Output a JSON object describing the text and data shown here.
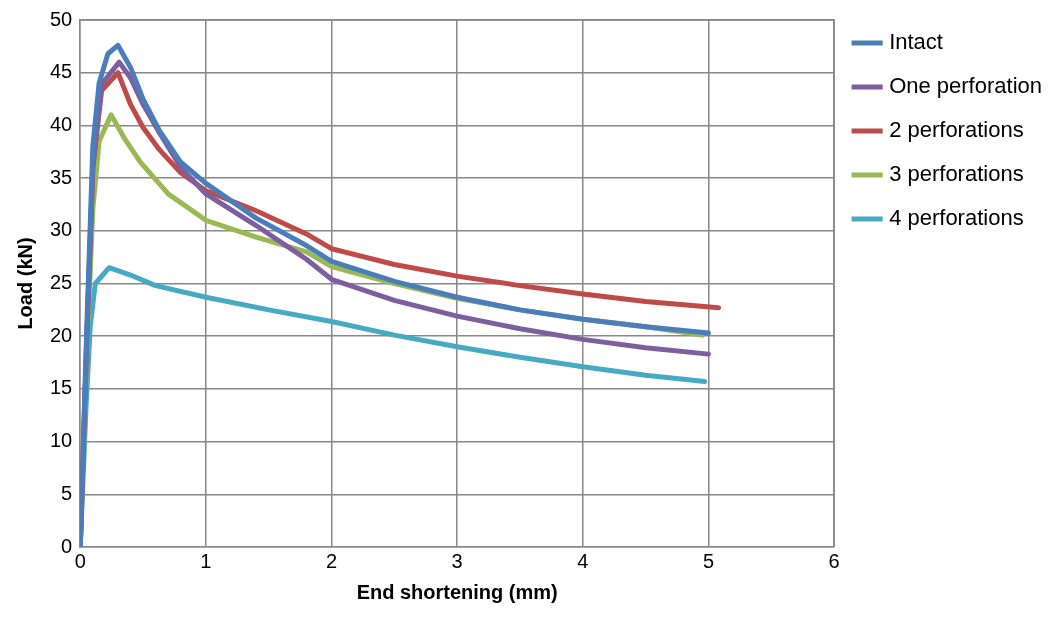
{
  "chart_data": {
    "type": "line",
    "xlabel": "End shortening (mm)",
    "ylabel": "Load (kN)",
    "xlim": [
      0,
      6
    ],
    "xticks": [
      0,
      1,
      2,
      3,
      4,
      5,
      6
    ],
    "ylim": [
      0,
      50
    ],
    "yticks": [
      0,
      5,
      10,
      15,
      20,
      25,
      30,
      35,
      40,
      45,
      50
    ],
    "grid": true,
    "legend": "right",
    "marker": "none",
    "line_style": "solid",
    "series": [
      {
        "name": "Intact",
        "color": "#4a7ebb",
        "x": [
          0,
          0.05,
          0.1,
          0.15,
          0.22,
          0.3,
          0.4,
          0.5,
          0.63,
          0.8,
          1,
          1.4,
          1.8,
          2,
          2.5,
          3,
          3.5,
          4,
          4.5,
          5
        ],
        "values": [
          0,
          20,
          38,
          44,
          46.8,
          47.6,
          45.5,
          42.5,
          39.5,
          36.5,
          34.5,
          31.2,
          28.6,
          27.1,
          25.2,
          23.7,
          22.5,
          21.6,
          20.9,
          20.3
        ]
      },
      {
        "name": "One perforation",
        "color": "#7d5fa0",
        "x": [
          0,
          0.05,
          0.1,
          0.17,
          0.31,
          0.4,
          0.5,
          0.63,
          0.8,
          1,
          1.4,
          1.8,
          2,
          2.5,
          3,
          3.5,
          4,
          4.5,
          5
        ],
        "values": [
          0,
          19,
          36,
          43.9,
          46,
          44.5,
          42,
          39.3,
          36,
          33.5,
          30.5,
          27.3,
          25.4,
          23.4,
          21.9,
          20.7,
          19.7,
          18.9,
          18.3
        ]
      },
      {
        "name": "2 perforations",
        "color": "#be4b48",
        "x": [
          0,
          0.05,
          0.1,
          0.17,
          0.3,
          0.4,
          0.5,
          0.63,
          0.8,
          1,
          1.4,
          1.8,
          2,
          2.5,
          3,
          3.5,
          4,
          4.5,
          5.08
        ],
        "values": [
          0,
          19,
          36,
          43.3,
          45,
          42,
          39.8,
          37.7,
          35.5,
          33.8,
          31.9,
          29.7,
          28.3,
          26.8,
          25.7,
          24.8,
          24,
          23.3,
          22.7
        ]
      },
      {
        "name": "3 perforations",
        "color": "#98b954",
        "x": [
          0,
          0.05,
          0.1,
          0.15,
          0.245,
          0.35,
          0.48,
          0.7,
          1,
          1.4,
          1.8,
          2,
          2.5,
          3,
          3.5,
          4,
          4.5,
          4.95
        ],
        "values": [
          0,
          18,
          32,
          38.5,
          41,
          38.8,
          36.5,
          33.5,
          31,
          29.4,
          28,
          26.6,
          25,
          23.6,
          22.5,
          21.6,
          20.9,
          20.1
        ]
      },
      {
        "name": "4 perforations",
        "color": "#46aac5",
        "x": [
          0,
          0.045,
          0.08,
          0.12,
          0.23,
          0.4,
          0.6,
          1,
          1.5,
          2,
          2.5,
          3,
          3.5,
          4,
          4.5,
          4.97
        ],
        "values": [
          0,
          13,
          21,
          25,
          26.5,
          25.8,
          24.8,
          23.7,
          22.5,
          21.4,
          20.1,
          19,
          18,
          17.1,
          16.3,
          15.7
        ]
      }
    ]
  }
}
